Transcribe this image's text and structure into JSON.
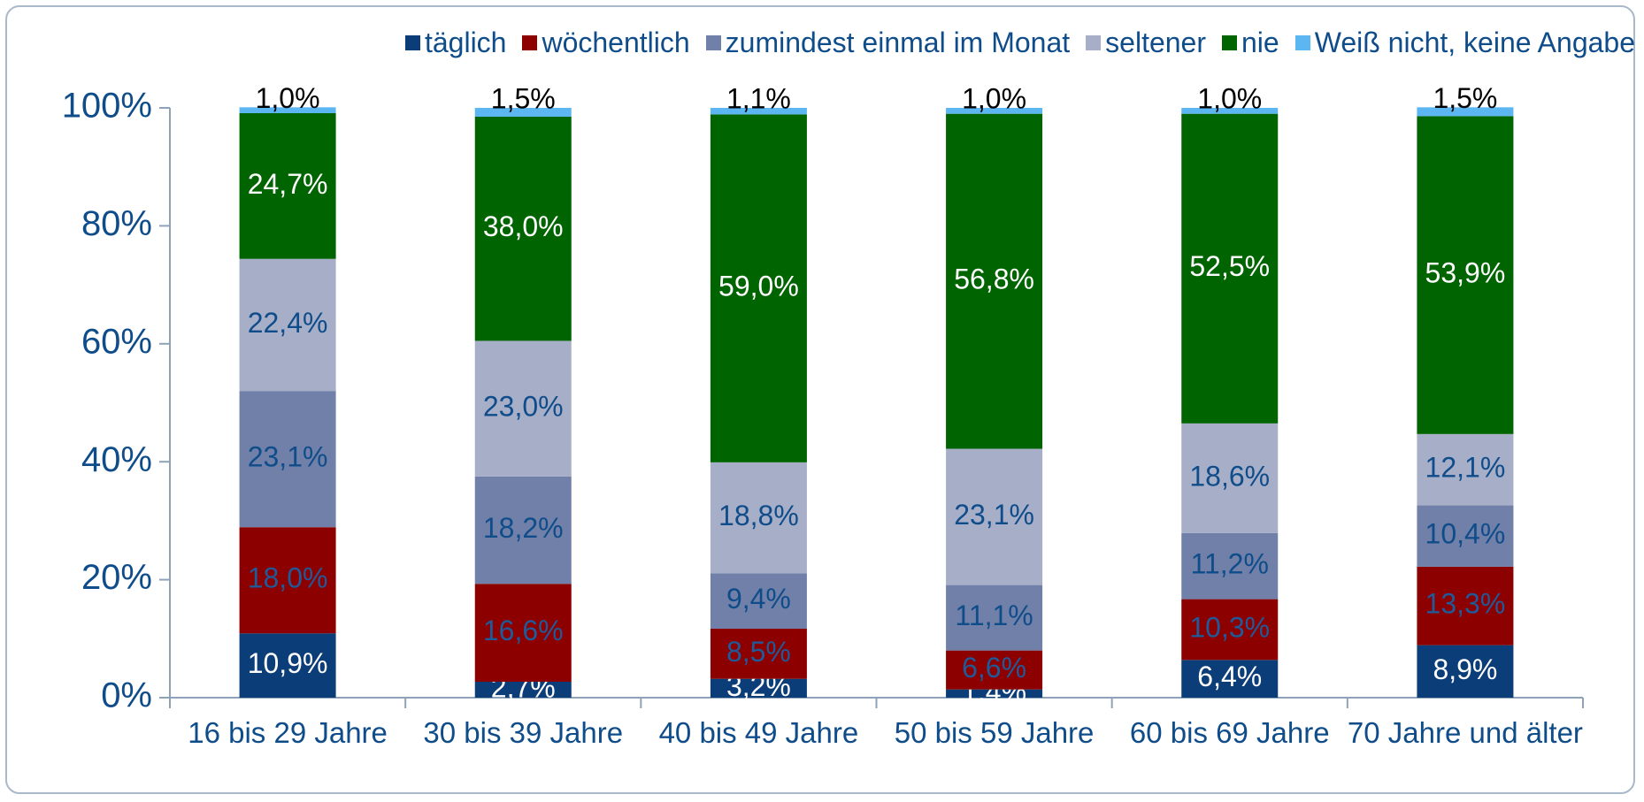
{
  "chart_data": {
    "type": "stacked_bar",
    "categories": [
      "16 bis 29 Jahre",
      "30 bis 39 Jahre",
      "40 bis 49 Jahre",
      "50 bis 59 Jahre",
      "60 bis 69 Jahre",
      "70 Jahre und älter"
    ],
    "series": [
      {
        "name": "täglich",
        "color": "#0b3d78",
        "label_color": "#ffffff",
        "values": [
          10.9,
          2.7,
          3.2,
          1.4,
          6.4,
          8.9
        ],
        "value_labels": [
          "10,9%",
          "2,7%",
          "3,2%",
          "1,4%",
          "6,4%",
          "8,9%"
        ]
      },
      {
        "name": "wöchentlich",
        "color": "#8c0000",
        "label_color": "#1f5a9a",
        "values": [
          18.0,
          16.6,
          8.5,
          6.6,
          10.3,
          13.3
        ],
        "value_labels": [
          "18,0%",
          "16,6%",
          "8,5%",
          "6,6%",
          "10,3%",
          "13,3%"
        ]
      },
      {
        "name": "zumindest einmal im Monat",
        "color": "#7080a8",
        "label_color": "#0f4c8a",
        "values": [
          23.1,
          18.2,
          9.4,
          11.1,
          11.2,
          10.4
        ],
        "value_labels": [
          "23,1%",
          "18,2%",
          "9,4%",
          "11,1%",
          "11,2%",
          "10,4%"
        ]
      },
      {
        "name": "seltener",
        "color": "#a7aec8",
        "label_color": "#0f4c8a",
        "values": [
          22.4,
          23.0,
          18.8,
          23.1,
          18.6,
          12.1
        ],
        "value_labels": [
          "22,4%",
          "23,0%",
          "18,8%",
          "23,1%",
          "18,6%",
          "12,1%"
        ]
      },
      {
        "name": "nie",
        "color": "#006400",
        "label_color": "#ffffff",
        "values": [
          24.7,
          38.0,
          59.0,
          56.8,
          52.5,
          53.9
        ],
        "value_labels": [
          "24,7%",
          "38,0%",
          "59,0%",
          "56,8%",
          "52,5%",
          "53,9%"
        ]
      },
      {
        "name": "Weiß nicht, keine Angabe",
        "color": "#5cb6f2",
        "label_color": "#000000",
        "values": [
          1.0,
          1.5,
          1.1,
          1.0,
          1.0,
          1.5
        ],
        "value_labels": [
          "1,0%",
          "1,5%",
          "1,1%",
          "1,0%",
          "1,0%",
          "1,5%"
        ]
      }
    ],
    "ylim": [
      0,
      100
    ],
    "yticks": [
      {
        "value": 0,
        "label": "0%"
      },
      {
        "value": 20,
        "label": "20%"
      },
      {
        "value": 40,
        "label": "40%"
      },
      {
        "value": 60,
        "label": "60%"
      },
      {
        "value": 80,
        "label": "80%"
      },
      {
        "value": 100,
        "label": "100%"
      }
    ],
    "legend": "top"
  }
}
